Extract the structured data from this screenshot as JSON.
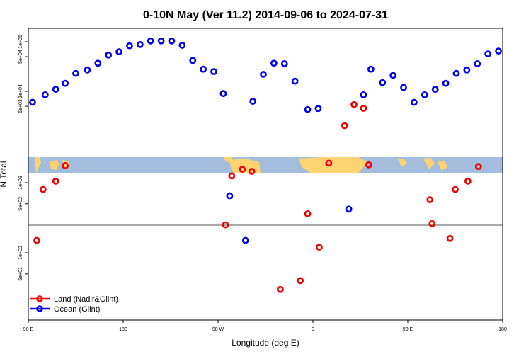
{
  "chart_data": {
    "type": "scatter",
    "title": "0-10N May (Ver 11.2)   2014-09-06 to 2024-07-31",
    "xlabel": "Longitude (deg E)",
    "ylabel": "N Total",
    "x_ticks": [
      {
        "value": 90,
        "label": "90 E"
      },
      {
        "value": 180,
        "label": "180"
      },
      {
        "value": 270,
        "label": "90 W"
      },
      {
        "value": 360,
        "label": "0"
      },
      {
        "value": 450,
        "label": "90 E"
      },
      {
        "value": 540,
        "label": "180"
      }
    ],
    "xlim": [
      90,
      540
    ],
    "log_scale_y": true,
    "upper_panel": {
      "y_ticks": [
        {
          "value": 5000,
          "label": "5e+03"
        },
        {
          "value": 10000,
          "label": "1e+04"
        },
        {
          "value": 50000,
          "label": "5e+04"
        },
        {
          "value": 100000,
          "label": "1e+05"
        }
      ]
    },
    "lower_panel": {
      "y_ticks": [
        {
          "value": 50,
          "label": "5e+01"
        },
        {
          "value": 100,
          "label": "1e+02"
        },
        {
          "value": 500,
          "label": "5e+02"
        },
        {
          "value": 1000,
          "label": "1e+03"
        }
      ]
    },
    "legend_position": "bottom-left",
    "series": [
      {
        "name": "Land (Nadir&Glint)",
        "color": "#ee0000",
        "panel": "lower",
        "points": [
          {
            "x": 98,
            "y": 150
          },
          {
            "x": 104,
            "y": 800
          },
          {
            "x": 116,
            "y": 1050
          },
          {
            "x": 125,
            "y": 1750
          },
          {
            "x": 277,
            "y": 250
          },
          {
            "x": 283,
            "y": 1250
          },
          {
            "x": 293,
            "y": 1550
          },
          {
            "x": 302,
            "y": 1450
          },
          {
            "x": 329,
            "y": 30
          },
          {
            "x": 348,
            "y": 40
          },
          {
            "x": 355,
            "y": 360
          },
          {
            "x": 366,
            "y": 120
          },
          {
            "x": 375,
            "y": 1900
          },
          {
            "x": 390,
            "y": 6500
          },
          {
            "x": 399,
            "y": 13000
          },
          {
            "x": 408,
            "y": 11500
          },
          {
            "x": 413,
            "y": 1800
          },
          {
            "x": 471,
            "y": 570
          },
          {
            "x": 473,
            "y": 260
          },
          {
            "x": 490,
            "y": 160
          },
          {
            "x": 495,
            "y": 800
          },
          {
            "x": 507,
            "y": 1050
          },
          {
            "x": 517,
            "y": 1700
          }
        ]
      },
      {
        "name": "Ocean (Glint)",
        "color": "#0000ee",
        "panel": "mixed",
        "points": [
          {
            "x": 94,
            "y": 6000
          },
          {
            "x": 106,
            "y": 8500
          },
          {
            "x": 116,
            "y": 11000
          },
          {
            "x": 125,
            "y": 14500
          },
          {
            "x": 135,
            "y": 23000
          },
          {
            "x": 146,
            "y": 27000
          },
          {
            "x": 156,
            "y": 37000
          },
          {
            "x": 166,
            "y": 54000
          },
          {
            "x": 176,
            "y": 63000
          },
          {
            "x": 186,
            "y": 83000
          },
          {
            "x": 196,
            "y": 88000
          },
          {
            "x": 206,
            "y": 104000
          },
          {
            "x": 216,
            "y": 104000
          },
          {
            "x": 226,
            "y": 104000
          },
          {
            "x": 236,
            "y": 85000
          },
          {
            "x": 246,
            "y": 42000
          },
          {
            "x": 256,
            "y": 28000
          },
          {
            "x": 266,
            "y": 25000
          },
          {
            "x": 275,
            "y": 9000
          },
          {
            "x": 281,
            "y": 650
          },
          {
            "x": 296,
            "y": 150
          },
          {
            "x": 303,
            "y": 6300
          },
          {
            "x": 313,
            "y": 22000
          },
          {
            "x": 323,
            "y": 37000
          },
          {
            "x": 333,
            "y": 36000
          },
          {
            "x": 343,
            "y": 16000
          },
          {
            "x": 355,
            "y": 4300
          },
          {
            "x": 365,
            "y": 4500
          },
          {
            "x": 394,
            "y": 420
          },
          {
            "x": 408,
            "y": 8500
          },
          {
            "x": 415,
            "y": 28000
          },
          {
            "x": 426,
            "y": 15000
          },
          {
            "x": 436,
            "y": 21000
          },
          {
            "x": 446,
            "y": 12000
          },
          {
            "x": 456,
            "y": 6000
          },
          {
            "x": 466,
            "y": 8500
          },
          {
            "x": 476,
            "y": 11000
          },
          {
            "x": 486,
            "y": 14500
          },
          {
            "x": 496,
            "y": 23000
          },
          {
            "x": 506,
            "y": 27000
          },
          {
            "x": 516,
            "y": 36000
          },
          {
            "x": 526,
            "y": 57000
          },
          {
            "x": 536,
            "y": 65000
          }
        ]
      }
    ]
  }
}
